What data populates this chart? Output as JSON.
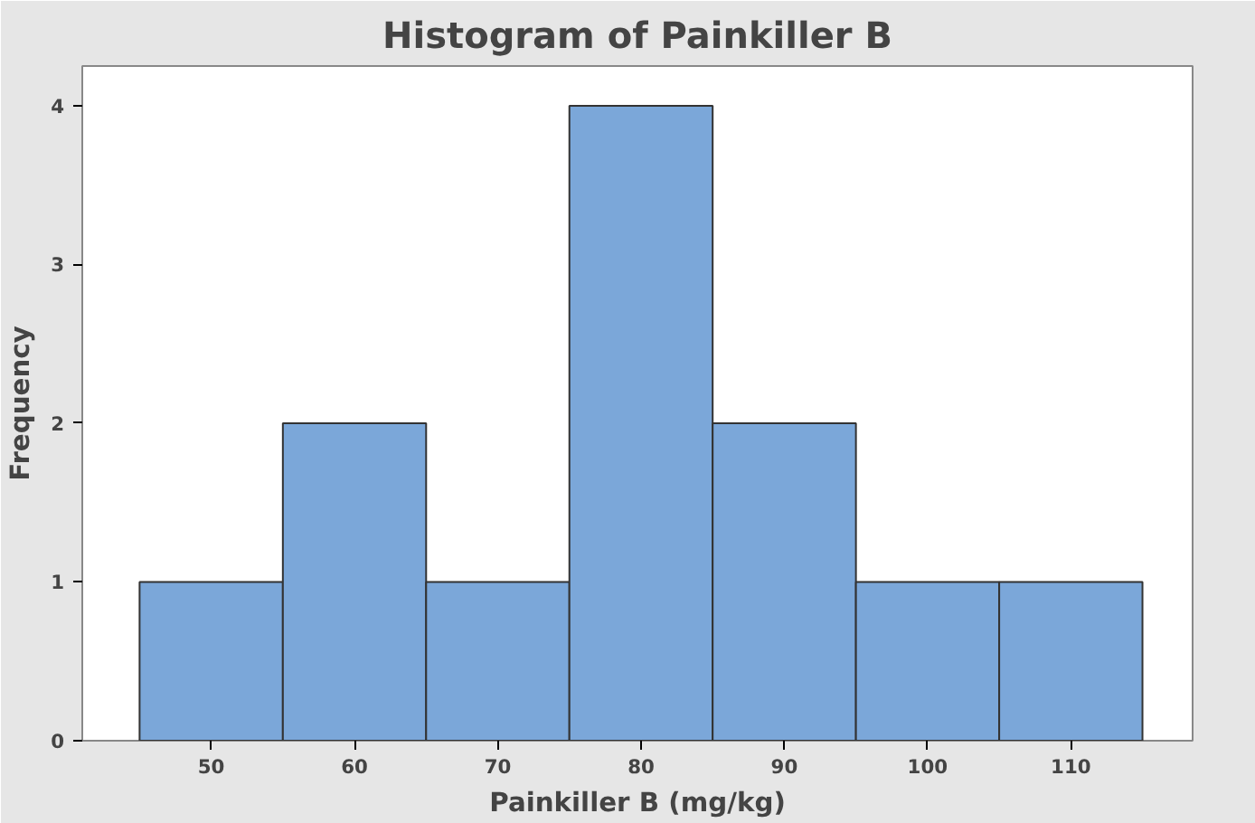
{
  "chart_data": {
    "type": "histogram",
    "title": "Histogram of Painkiller B",
    "xlabel": "Painkiller B (mg/kg)",
    "ylabel": "Frequency",
    "bins": [
      45,
      55,
      65,
      75,
      85,
      95,
      105,
      115
    ],
    "values": [
      1,
      2,
      1,
      4,
      2,
      1,
      1
    ],
    "color": "#7ba7d9",
    "xlim": [
      41,
      118.5
    ],
    "xticks": [
      50,
      60,
      70,
      80,
      90,
      100,
      110
    ],
    "ylim": [
      0,
      4.25
    ],
    "yticks": [
      0,
      1,
      2,
      3,
      4
    ],
    "grid": false
  }
}
